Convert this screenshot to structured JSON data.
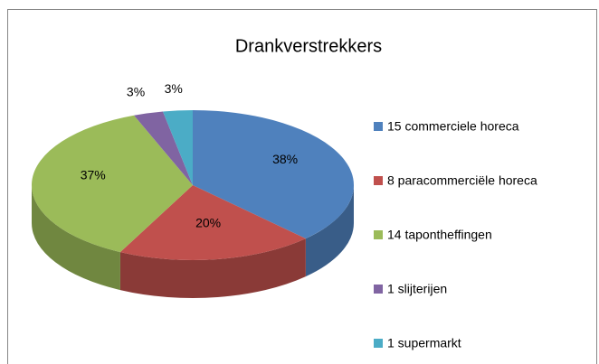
{
  "chart_data": {
    "type": "pie3d",
    "title": "Drankverstrekkers",
    "categories": [
      "15 commerciele horeca",
      "8 paracommerciële horeca",
      "14 tapontheffingen",
      "1 slijterijen",
      "1 supermarkt"
    ],
    "values": [
      38,
      20,
      37,
      3,
      3
    ],
    "value_labels": [
      "38%",
      "20%",
      "37%",
      "3%",
      "3%"
    ],
    "colors": [
      "#4f81bd",
      "#c0504d",
      "#9bbb59",
      "#8064a2",
      "#4bacc6"
    ],
    "legend": "right"
  }
}
